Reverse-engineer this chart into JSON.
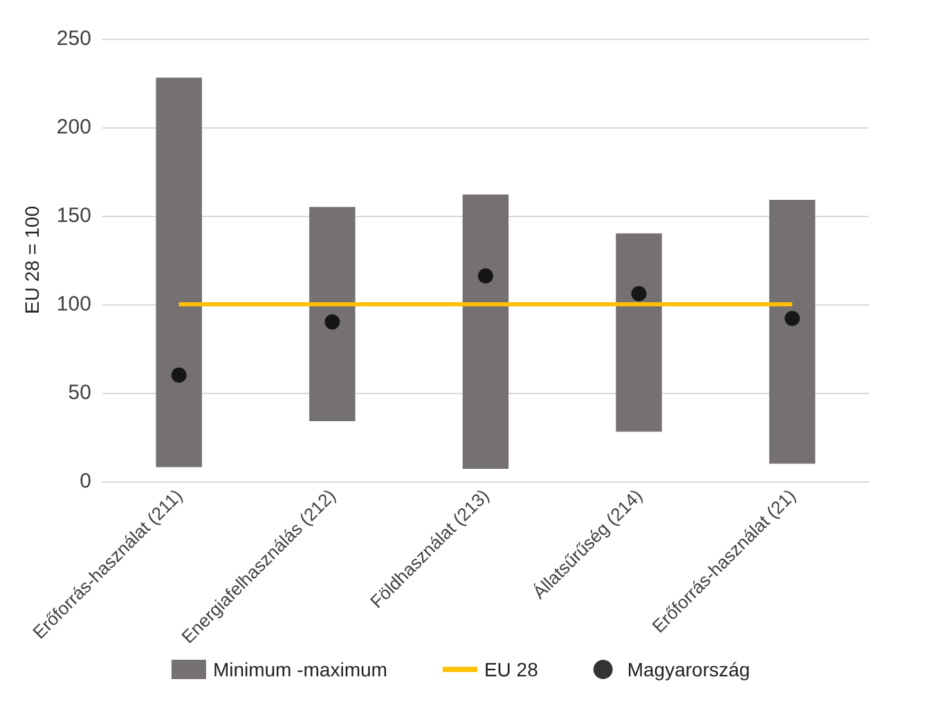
{
  "chart_data": {
    "type": "bar",
    "ylabel": "EU 28 = 100",
    "categories": [
      "Erőforrás-használat (211)",
      "Energiafelhasználás (212)",
      "Földhasználat (213)",
      "Állatsűrűség (214)",
      "Erőforrás-használat (21)"
    ],
    "series": [
      {
        "name": "Minimum -maximum",
        "color": "#767171",
        "base": [
          8,
          34,
          7,
          28,
          10
        ],
        "values": [
          220,
          121,
          155,
          112,
          149
        ]
      },
      {
        "name": "EU 28",
        "type": "line",
        "color": "#ffc000",
        "marker": "none",
        "values": [
          100,
          100,
          100,
          100,
          100
        ]
      },
      {
        "name": "Magyarország",
        "type": "scatter",
        "color": "#000000",
        "marker": "circle",
        "x": [
          "Erőforrás-használat (211)",
          "Energiafelhasználás (212)",
          "Földhasználat (213)",
          "Állatsűrűség (214)",
          "Erőforrás-használat (21)"
        ],
        "values": [
          60,
          90,
          116,
          106,
          92
        ]
      }
    ],
    "ylim": [
      0,
      250
    ],
    "yticks": [
      0,
      50,
      100,
      150,
      200,
      250
    ],
    "grid": "y",
    "legend": "bottom"
  }
}
